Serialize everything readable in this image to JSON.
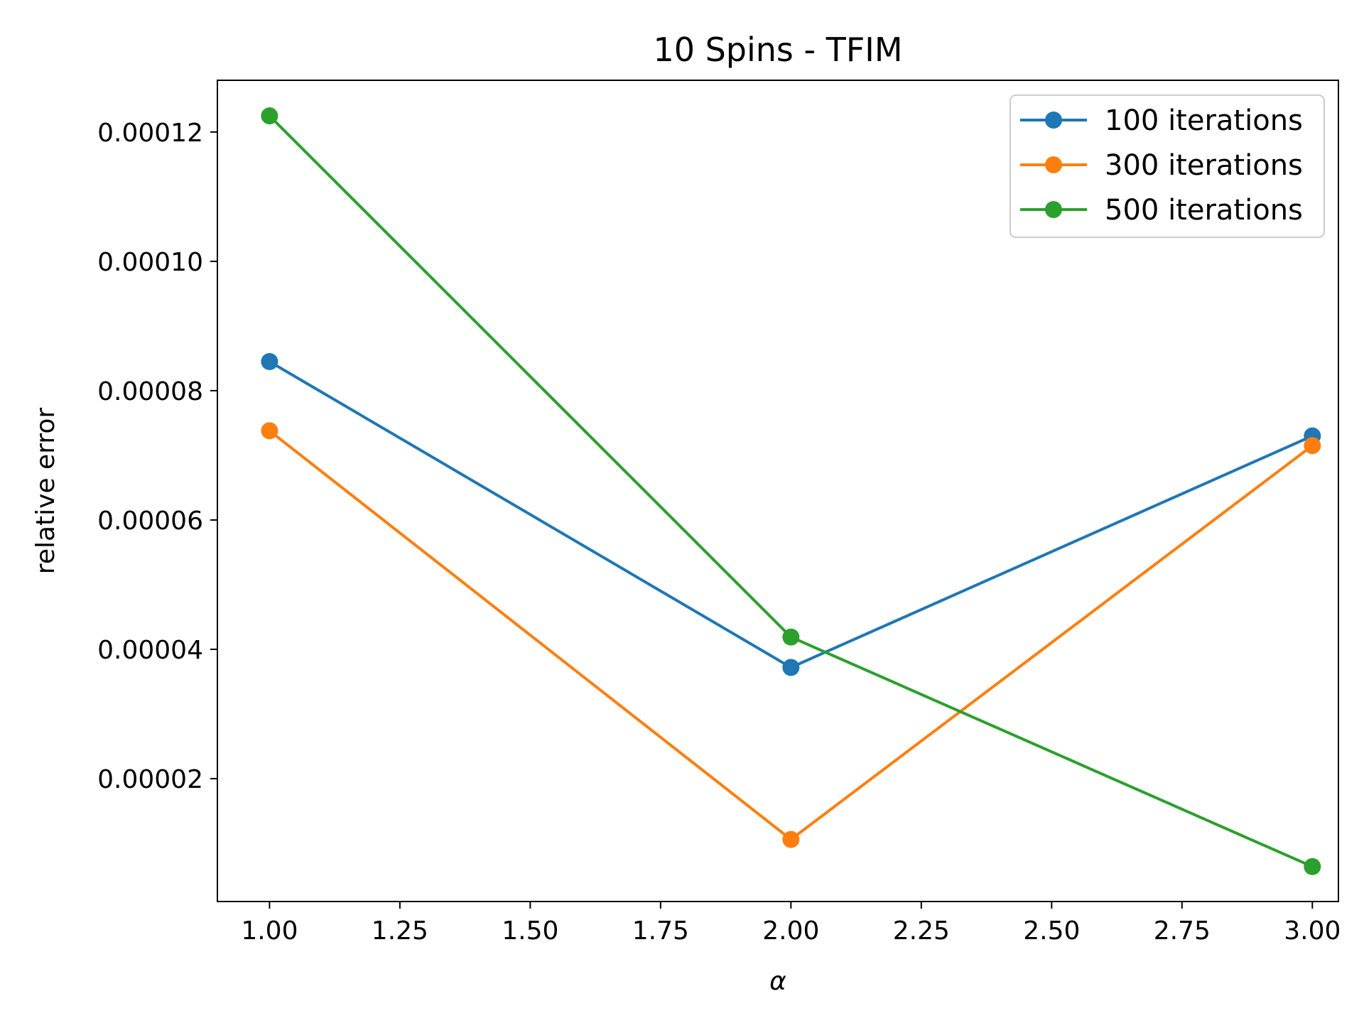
{
  "chart_data": {
    "type": "line",
    "title": "10 Spins - TFIM",
    "xlabel": "α",
    "ylabel": "relative error",
    "x": [
      1.0,
      2.0,
      3.0
    ],
    "xlim": [
      0.9,
      3.05
    ],
    "ylim": [
      1e-06,
      0.000128
    ],
    "xticks": [
      1.0,
      1.25,
      1.5,
      1.75,
      2.0,
      2.25,
      2.5,
      2.75,
      3.0
    ],
    "xtick_labels": [
      "1.00",
      "1.25",
      "1.50",
      "1.75",
      "2.00",
      "2.25",
      "2.50",
      "2.75",
      "3.00"
    ],
    "yticks": [
      2e-05,
      4e-05,
      6e-05,
      8e-05,
      0.0001,
      0.00012
    ],
    "ytick_labels": [
      "0.00002",
      "0.00004",
      "0.00006",
      "0.00008",
      "0.00010",
      "0.00012"
    ],
    "grid": false,
    "legend_position": "top-right",
    "series": [
      {
        "name": "100 iterations",
        "color": "#1f77b4",
        "values": [
          8.45e-05,
          3.72e-05,
          7.3e-05
        ]
      },
      {
        "name": "300 iterations",
        "color": "#ff7f0e",
        "values": [
          7.38e-05,
          1.06e-05,
          7.15e-05
        ]
      },
      {
        "name": "500 iterations",
        "color": "#2ca02c",
        "values": [
          0.0001225,
          4.19e-05,
          6.4e-06
        ]
      }
    ]
  }
}
